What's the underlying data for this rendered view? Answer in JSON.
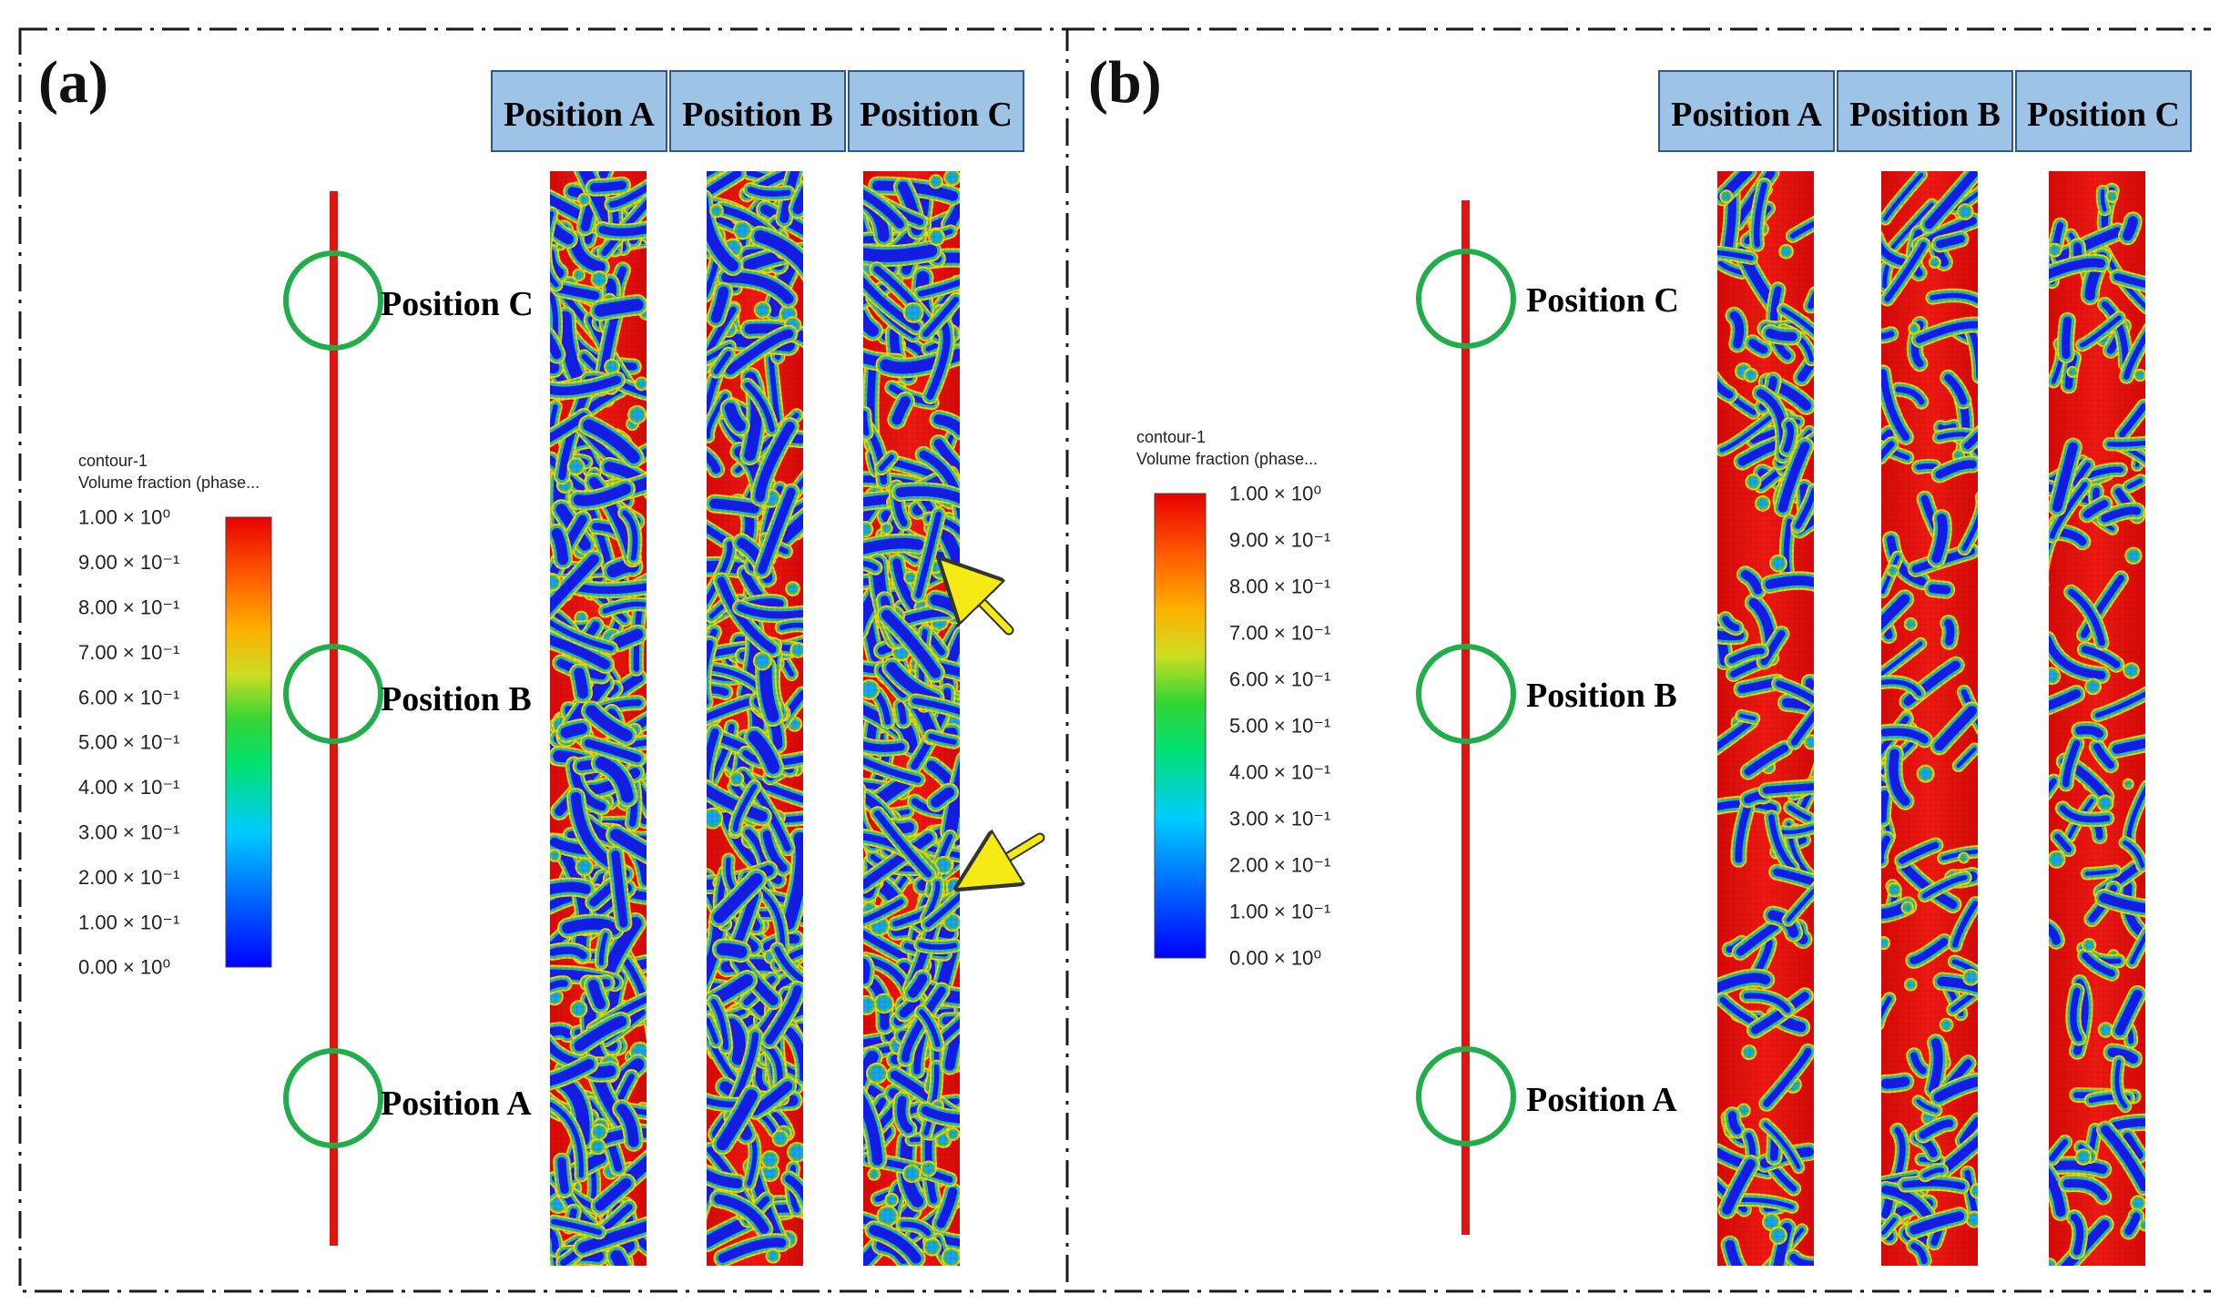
{
  "panels": [
    {
      "label": "(a)",
      "column_headers": [
        "Position A",
        "Position B",
        "Position C"
      ],
      "callouts": [
        "Position C",
        "Position B",
        "Position A"
      ],
      "legend": {
        "title": "contour-1",
        "subtitle": "Volume fraction (phase...",
        "ticks": [
          "1.00 × 10⁰",
          "9.00 × 10⁻¹",
          "8.00 × 10⁻¹",
          "7.00 × 10⁻¹",
          "6.00 × 10⁻¹",
          "5.00 × 10⁻¹",
          "4.00 × 10⁻¹",
          "3.00 × 10⁻¹",
          "2.00 × 10⁻¹",
          "1.00 × 10⁻¹",
          "0.00 × 10⁰"
        ]
      },
      "annotation_arrows": 2
    },
    {
      "label": "(b)",
      "column_headers": [
        "Position A",
        "Position B",
        "Position C"
      ],
      "callouts": [
        "Position C",
        "Position B",
        "Position A"
      ],
      "legend": {
        "title": "contour-1",
        "subtitle": "Volume fraction (phase...",
        "ticks": [
          "1.00 × 10⁰",
          "9.00 × 10⁻¹",
          "8.00 × 10⁻¹",
          "7.00 × 10⁻¹",
          "6.00 × 10⁻¹",
          "5.00 × 10⁻¹",
          "4.00 × 10⁻¹",
          "3.00 × 10⁻¹",
          "2.00 × 10⁻¹",
          "1.00 × 10⁻¹",
          "0.00 × 10⁰"
        ]
      },
      "annotation_arrows": 0
    }
  ],
  "colors": {
    "frame": "#1a1a1a",
    "header_fill": "#9dc3e6",
    "header_stroke": "#2f5597",
    "circle": "#1fae4a",
    "arrow": "#f5ea14",
    "phase_high": "#e8130f",
    "phase_low": "#0a1ef0"
  }
}
